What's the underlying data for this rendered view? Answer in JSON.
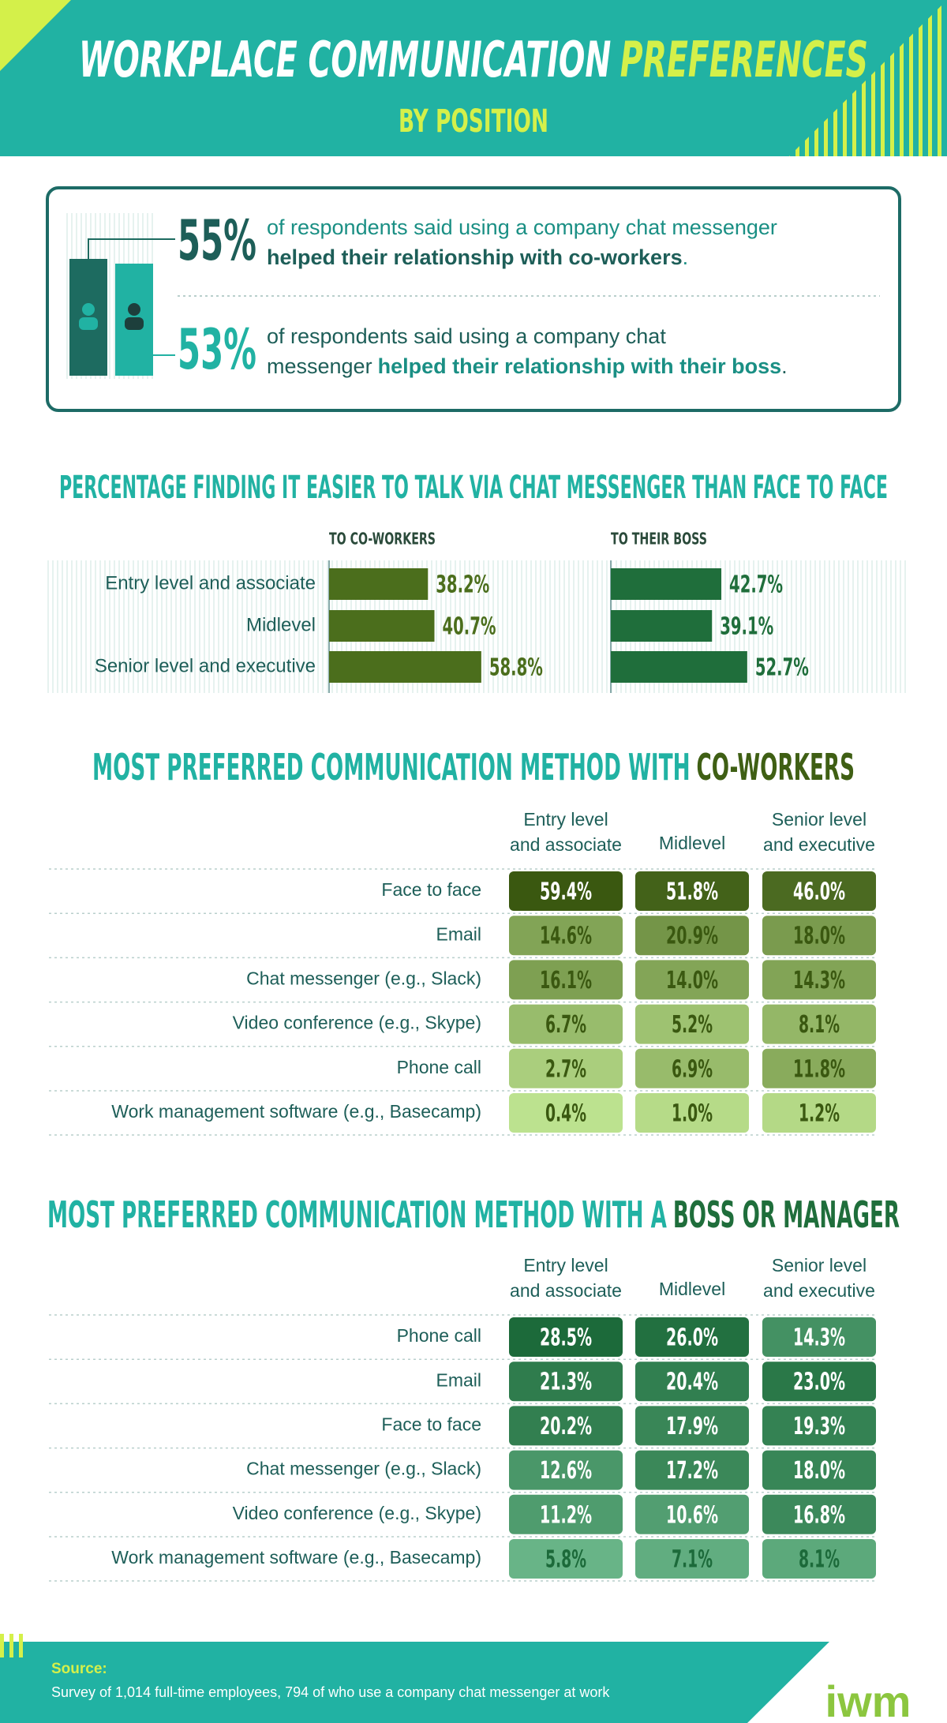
{
  "header": {
    "title_main": "WORKPLACE COMMUNICATION",
    "title_accent": "PREFERENCES",
    "subtitle": "BY POSITION"
  },
  "stats": [
    {
      "figure": "55%",
      "lines": [
        [
          {
            "text": "of respondents said using a company chat messenger",
            "bold": false
          }
        ],
        [
          {
            "text": "helped their relationship with co-workers",
            "bold": true
          },
          {
            "text": ".",
            "bold": false
          }
        ]
      ]
    },
    {
      "figure": "53%",
      "lines": [
        [
          {
            "text": "of respondents said using a company chat",
            "bold": false
          }
        ],
        [
          {
            "text": "messenger",
            "bold": false
          },
          {
            "text": "helped their relationship with their boss",
            "bold": true
          },
          {
            "text": ".",
            "bold": false
          }
        ]
      ]
    }
  ],
  "chart_data": {
    "type": "bar",
    "title": "PERCENTAGE FINDING IT EASIER TO TALK VIA CHAT MESSENGER THAN FACE TO FACE",
    "categories": [
      "Entry level and associate",
      "Midlevel",
      "Senior level and executive"
    ],
    "series": [
      {
        "name": "TO CO-WORKERS",
        "color": "#4b6e1c",
        "values": [
          38.2,
          40.7,
          58.8
        ],
        "value_labels": [
          "38.2%",
          "40.7%",
          "58.8%"
        ]
      },
      {
        "name": "TO THEIR BOSS",
        "color": "#1f6e3b",
        "values": [
          42.7,
          39.1,
          52.7
        ],
        "value_labels": [
          "42.7%",
          "39.1%",
          "52.7%"
        ]
      }
    ]
  },
  "tables": [
    {
      "title": "MOST PREFERRED COMMUNICATION METHOD WITH",
      "title_accent": "CO-WORKERS",
      "accent_color": "#3f5f14",
      "colors": [
        "#c8ee9a",
        "#3a5810"
      ],
      "columns": [
        [
          "Entry level",
          "and associate"
        ],
        [
          "Midlevel"
        ],
        [
          "Senior level",
          "and executive"
        ]
      ],
      "rows": [
        {
          "label": "Face to face",
          "values": [
            59.4,
            51.8,
            46.0
          ],
          "value_labels": [
            "59.4%",
            "51.8%",
            "46.0%"
          ]
        },
        {
          "label": "Email",
          "values": [
            14.6,
            20.9,
            18.0
          ],
          "value_labels": [
            "14.6%",
            "20.9%",
            "18.0%"
          ]
        },
        {
          "label": "Chat messenger (e.g., Slack)",
          "values": [
            16.1,
            14.0,
            14.3
          ],
          "value_labels": [
            "16.1%",
            "14.0%",
            "14.3%"
          ]
        },
        {
          "label": "Video conference (e.g., Skype)",
          "values": [
            6.7,
            5.2,
            8.1
          ],
          "value_labels": [
            "6.7%",
            "5.2%",
            "8.1%"
          ]
        },
        {
          "label": "Phone call",
          "values": [
            2.7,
            6.9,
            11.8
          ],
          "value_labels": [
            "2.7%",
            "6.9%",
            "11.8%"
          ]
        },
        {
          "label": "Work management software (e.g., Basecamp)",
          "values": [
            0.4,
            1.0,
            1.2
          ],
          "value_labels": [
            "0.4%",
            "1.0%",
            "1.2%"
          ]
        }
      ]
    },
    {
      "title": "MOST PREFERRED COMMUNICATION METHOD WITH A",
      "title_accent": "BOSS OR MANAGER",
      "accent_color": "#1f6e3b",
      "colors": [
        "#a6f0c6",
        "#1c6a3a"
      ],
      "columns": [
        [
          "Entry level",
          "and associate"
        ],
        [
          "Midlevel"
        ],
        [
          "Senior level",
          "and executive"
        ]
      ],
      "rows": [
        {
          "label": "Phone call",
          "values": [
            28.5,
            26.0,
            14.3
          ],
          "value_labels": [
            "28.5%",
            "26.0%",
            "14.3%"
          ]
        },
        {
          "label": "Email",
          "values": [
            21.3,
            20.4,
            23.0
          ],
          "value_labels": [
            "21.3%",
            "20.4%",
            "23.0%"
          ]
        },
        {
          "label": "Face to face",
          "values": [
            20.2,
            17.9,
            19.3
          ],
          "value_labels": [
            "20.2%",
            "17.9%",
            "19.3%"
          ]
        },
        {
          "label": "Chat messenger (e.g., Slack)",
          "values": [
            12.6,
            17.2,
            18.0
          ],
          "value_labels": [
            "12.6%",
            "17.2%",
            "18.0%"
          ]
        },
        {
          "label": "Video conference (e.g., Skype)",
          "values": [
            11.2,
            10.6,
            16.8
          ],
          "value_labels": [
            "11.2%",
            "10.6%",
            "16.8%"
          ]
        },
        {
          "label": "Work management software (e.g., Basecamp)",
          "values": [
            5.8,
            7.1,
            8.1
          ],
          "value_labels": [
            "5.8%",
            "7.1%",
            "8.1%"
          ]
        }
      ]
    }
  ],
  "footer": {
    "source_label": "Source:",
    "source_text": "Survey of 1,014 full-time employees, 794 of who use a company chat messenger at work",
    "logo": "iwm"
  }
}
